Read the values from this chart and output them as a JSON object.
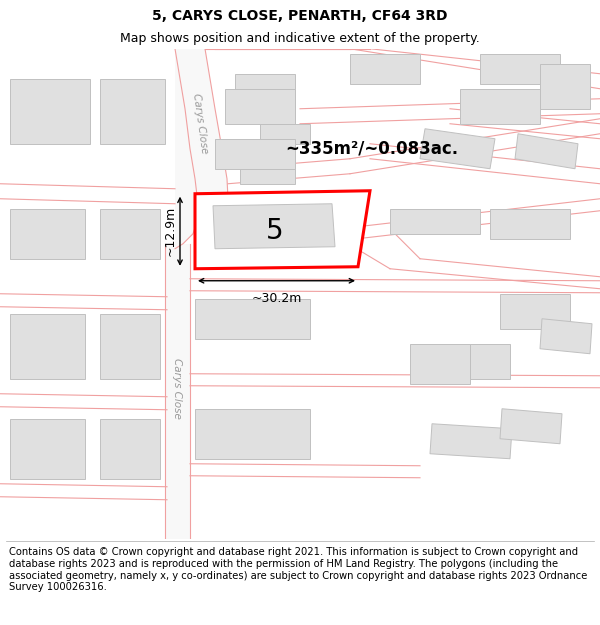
{
  "title": "5, CARYS CLOSE, PENARTH, CF64 3RD",
  "subtitle": "Map shows position and indicative extent of the property.",
  "footer": "Contains OS data © Crown copyright and database right 2021. This information is subject to Crown copyright and database rights 2023 and is reproduced with the permission of HM Land Registry. The polygons (including the associated geometry, namely x, y co-ordinates) are subject to Crown copyright and database rights 2023 Ordnance Survey 100026316.",
  "map_bg": "#ffffff",
  "road_line_color": "#f0a0a0",
  "building_fill": "#e0e0e0",
  "building_edge": "#c8c8c8",
  "highlight_edge": "#ff0000",
  "highlight_fill": "#ffffff",
  "area_text": "~335m²/~0.083ac.",
  "number_text": "5",
  "width_text": "~30.2m",
  "height_text": "~12.9m",
  "road_label": "Carys Close",
  "title_fontsize": 10,
  "subtitle_fontsize": 9,
  "footer_fontsize": 7.2,
  "area_fontsize": 12,
  "num_fontsize": 20,
  "dim_fontsize": 9
}
